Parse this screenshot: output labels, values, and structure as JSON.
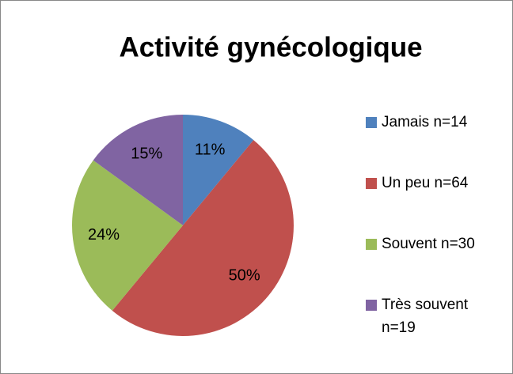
{
  "chart_data": {
    "type": "pie",
    "title": "Activité gynécologique",
    "categories": [
      "Jamais n=14",
      "Un peu n=64",
      "Souvent n=30",
      "Très souvent n=19"
    ],
    "values": [
      11,
      50,
      24,
      15
    ],
    "value_labels": [
      "11%",
      "50%",
      "24%",
      "15%"
    ],
    "colors": [
      "#4f81bd",
      "#c0504d",
      "#9bbb59",
      "#8064a2"
    ],
    "legend": "right"
  }
}
